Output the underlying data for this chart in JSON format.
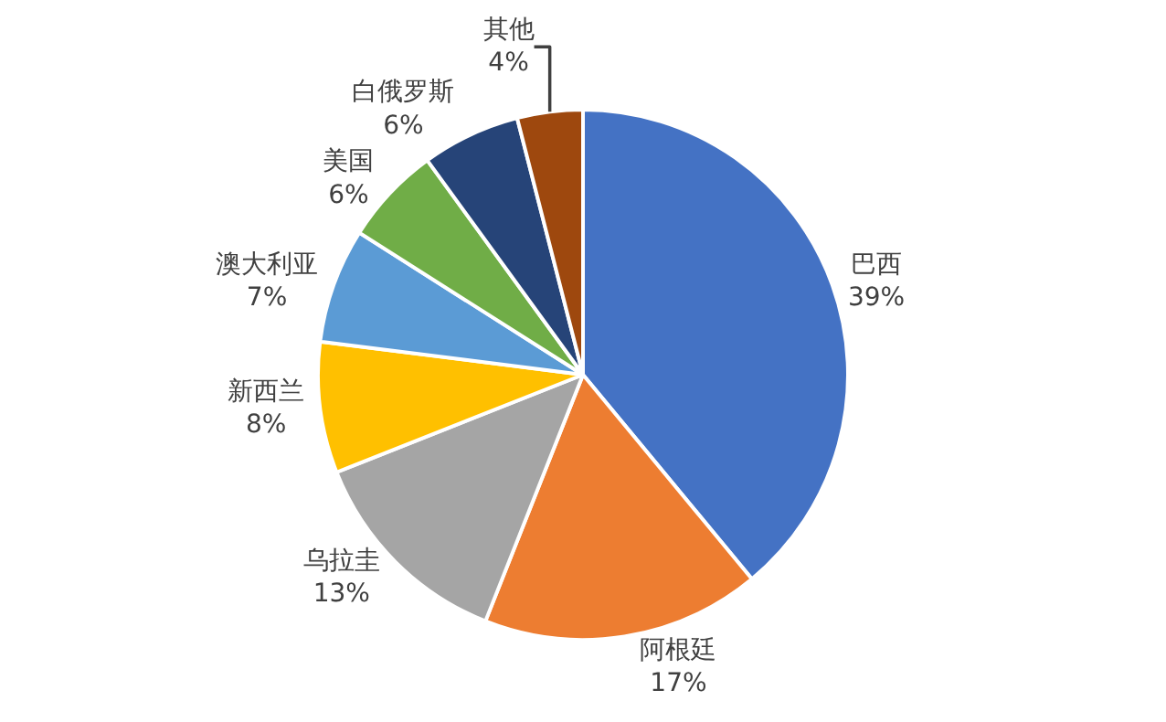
{
  "chart_data": {
    "type": "pie",
    "categories": [
      "巴西",
      "阿根廷",
      "乌拉圭",
      "新西兰",
      "澳大利亚",
      "美国",
      "白俄罗斯",
      "其他"
    ],
    "values": [
      39,
      17,
      13,
      8,
      7,
      6,
      6,
      4
    ],
    "value_labels": [
      "39%",
      "17%",
      "13%",
      "8%",
      "7%",
      "6%",
      "6%",
      "4%"
    ],
    "colors": [
      "#4472c4",
      "#ed7d31",
      "#a5a5a5",
      "#ffc000",
      "#5b9bd5",
      "#70ad47",
      "#264478",
      "#9e480e"
    ],
    "legend": false
  }
}
